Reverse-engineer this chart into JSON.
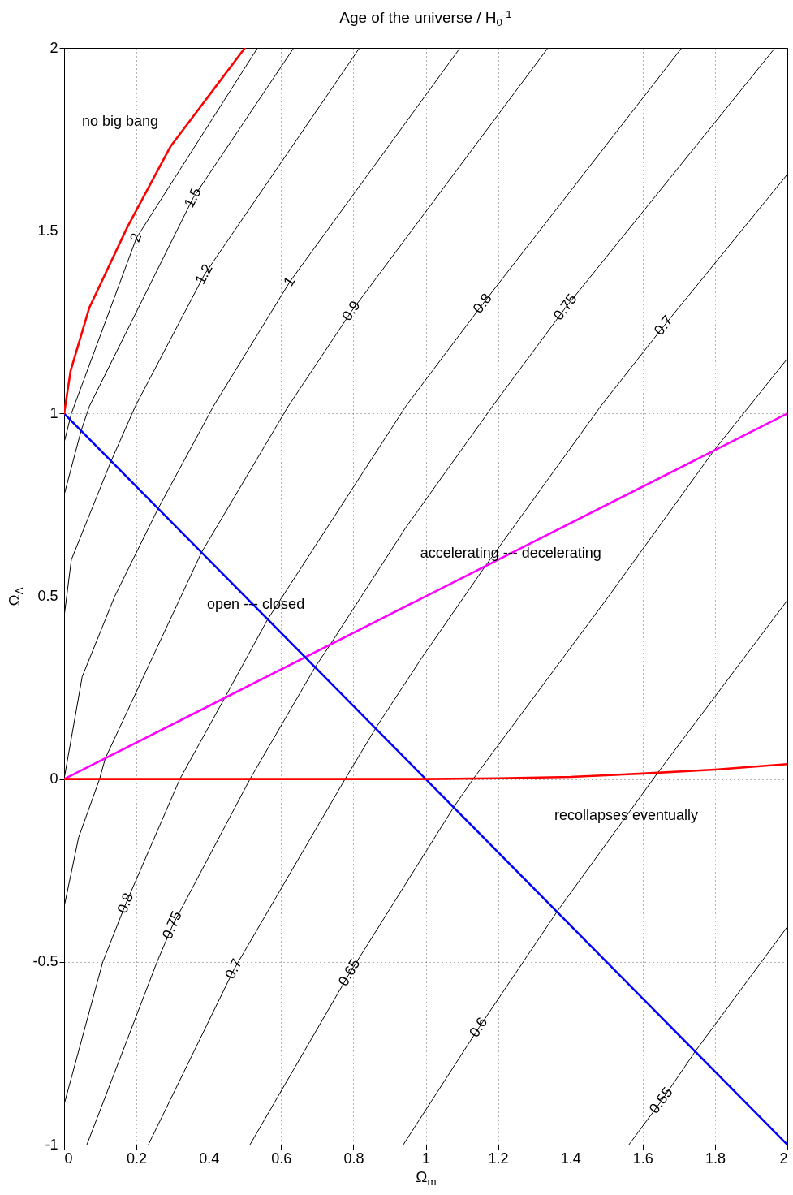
{
  "chart_data": {
    "type": "line",
    "title": "Age of the universe / H$_{0}$$^{-1}$",
    "xlabel": "Ω$_{m}$",
    "ylabel": "Ω$_{Λ}$",
    "xlim": [
      0,
      2
    ],
    "ylim": [
      -1,
      2
    ],
    "xticks": [
      0,
      0.2,
      0.4,
      0.6,
      0.8,
      1,
      1.2,
      1.4,
      1.6,
      1.8,
      2
    ],
    "yticks": [
      -1,
      -0.5,
      0,
      0.5,
      1,
      1.5,
      2
    ],
    "grid": true,
    "series": [
      {
        "color": "#000000",
        "x": [
          0,
          0.02,
          0.2,
          0.535
        ],
        "values": [
          0.92,
          1.0,
          1.48,
          2
        ]
      },
      {
        "color": "#000000",
        "x": [
          0,
          0.047,
          0.07,
          0.357,
          0.635
        ],
        "values": [
          0.777,
          0.953,
          1.02,
          1.59,
          2
        ]
      },
      {
        "color": "#000000",
        "x": [
          0,
          0.02,
          0.13,
          0.197,
          0.388,
          0.817
        ],
        "values": [
          0.444,
          0.6,
          0.87,
          1.02,
          1.38,
          2
        ]
      },
      {
        "color": "#000000",
        "x": [
          0,
          0.05,
          0.14,
          0.26,
          0.413,
          0.624,
          1.095
        ],
        "values": [
          0,
          0.28,
          0.5,
          0.74,
          1.02,
          1.36,
          2
        ]
      },
      {
        "color": "#000000",
        "x": [
          0,
          0.04,
          0.098,
          0.114,
          0.38,
          0.62,
          0.795,
          1.338
        ],
        "values": [
          -0.35,
          -0.16,
          0,
          0.057,
          0.62,
          1.02,
          1.28,
          2
        ]
      },
      {
        "color": "#000000",
        "x": [
          0,
          0.107,
          0.171,
          0.32,
          0.444,
          0.563,
          0.945,
          1.158,
          1.708
        ],
        "values": [
          -0.89,
          -0.5,
          -0.34,
          0,
          0.222,
          0.437,
          1.02,
          1.3,
          2
        ]
      },
      {
        "color": "#000000",
        "x": [
          0.063,
          0.257,
          0.3,
          0.514,
          0.694,
          0.736,
          0.945,
          1.185,
          1.387,
          1.966
        ],
        "values": [
          -1,
          -0.5,
          -0.4,
          0,
          0.306,
          0.368,
          0.688,
          1.02,
          1.29,
          2
        ]
      },
      {
        "color": "#000000",
        "x": [
          0.233,
          0.47,
          0.777,
          0.862,
          0.99,
          1.163,
          1.484,
          1.659,
          2
        ],
        "values": [
          -1,
          -0.52,
          0,
          0.14,
          0.333,
          0.58,
          1.02,
          1.24,
          1.654
        ]
      },
      {
        "color": "#000000",
        "x": [
          0.514,
          0.79,
          1.08,
          1.131,
          1.506,
          1.798,
          1.895,
          2
        ],
        "values": [
          -1,
          -0.53,
          -0.073,
          0,
          0.5,
          0.9,
          1.02,
          1.15
        ]
      },
      {
        "color": "#000000",
        "x": [
          0.938,
          1.147,
          1.365,
          1.64,
          2
        ],
        "values": [
          -1,
          -0.68,
          -0.36,
          0.015,
          0.489
        ]
      },
      {
        "color": "#000000",
        "x": [
          1.562,
          1.652,
          1.746,
          2
        ],
        "values": [
          -1,
          -0.88,
          -0.744,
          -0.404
        ]
      },
      {
        "color": "#ff00ff",
        "x": [
          0,
          2
        ],
        "values": [
          0,
          1
        ]
      },
      {
        "color": "#0000ff",
        "x": [
          0,
          2
        ],
        "values": [
          1,
          -1
        ]
      },
      {
        "color": "#ff0000",
        "x": [
          0,
          0.018,
          0.07,
          0.175,
          0.294,
          0.5
        ],
        "values": [
          1,
          1.117,
          1.29,
          1.51,
          1.73,
          2
        ]
      },
      {
        "color": "#ff0000",
        "x": [
          0,
          1,
          1.2,
          1.4,
          1.6,
          1.8,
          2
        ],
        "values": [
          0,
          0,
          0.002,
          0.006,
          0.015,
          0.026,
          0.041
        ]
      }
    ],
    "annotations": [
      {
        "text": "2",
        "x": 0.2,
        "y": 1.48
      },
      {
        "text": "1.5",
        "x": 0.357,
        "y": 1.59
      },
      {
        "text": "1.2",
        "x": 0.388,
        "y": 1.38
      },
      {
        "text": "1",
        "x": 0.624,
        "y": 1.36
      },
      {
        "text": "0.9",
        "x": 0.795,
        "y": 1.28
      },
      {
        "text": "0.8",
        "x": 1.158,
        "y": 1.3
      },
      {
        "text": "0.75",
        "x": 1.387,
        "y": 1.29
      },
      {
        "text": "0.7",
        "x": 1.659,
        "y": 1.24
      },
      {
        "text": "0.8",
        "x": 0.171,
        "y": -0.34
      },
      {
        "text": "0.75",
        "x": 0.3,
        "y": -0.4
      },
      {
        "text": "0.7",
        "x": 0.47,
        "y": -0.52
      },
      {
        "text": "0.65",
        "x": 0.79,
        "y": -0.53
      },
      {
        "text": "0.6",
        "x": 1.147,
        "y": -0.68
      },
      {
        "text": "0.55",
        "x": 1.652,
        "y": -0.88
      },
      "no big bang",
      {
        "text": "open --- closed",
        "x": 0.53,
        "y": 0.477
      },
      {
        "text": "accelerating --- decelerating",
        "x": 1.235,
        "y": 0.617
      },
      "recollapses eventually"
    ]
  }
}
